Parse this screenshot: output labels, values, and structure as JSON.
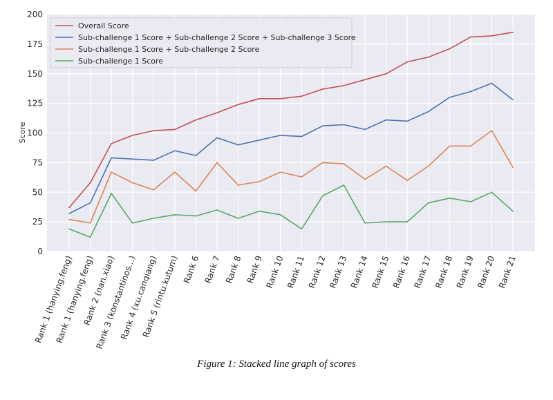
{
  "chart_data": {
    "type": "line",
    "title": "",
    "xlabel": "",
    "ylabel": "Score",
    "ylim": [
      0,
      200
    ],
    "yticks": [
      0,
      25,
      50,
      75,
      100,
      125,
      150,
      175,
      200
    ],
    "grid": true,
    "legend_position": "top-left",
    "categories": [
      "Rank 1 (hanying.feng)",
      "Rank 1 (hanying.feng)",
      "Rank 2 (nan.xiao)",
      "Rank 3 (konstantinos...)",
      "Rank 4 (xu.canqiang)",
      "Rank 5 (rintu.kutum)",
      "Rank 6",
      "Rank 7",
      "Rank 8",
      "Rank 9",
      "Rank 10",
      "Rank 11",
      "Rank 12",
      "Rank 13",
      "Rank 14",
      "Rank 15",
      "Rank 16",
      "Rank 17",
      "Rank 18",
      "Rank 19",
      "Rank 20",
      "Rank 21"
    ],
    "series": [
      {
        "name": "Overall Score",
        "color": "#c44e52",
        "values": [
          37,
          58,
          91,
          98,
          102,
          103,
          111,
          117,
          124,
          129,
          129,
          131,
          137,
          140,
          145,
          150,
          160,
          164,
          171,
          181,
          182,
          185
        ]
      },
      {
        "name": "Sub-challenge 1 Score + Sub-challenge 2 Score + Sub-challenge 3 Score",
        "color": "#4c72b0",
        "values": [
          32,
          41,
          79,
          78,
          77,
          85,
          81,
          96,
          90,
          94,
          98,
          97,
          106,
          107,
          103,
          111,
          110,
          118,
          130,
          135,
          142,
          128
        ]
      },
      {
        "name": "Sub-challenge 1 Score + Sub-challenge 2 Score",
        "color": "#dd8452",
        "values": [
          27,
          24,
          67,
          58,
          52,
          67,
          51,
          75,
          56,
          59,
          67,
          63,
          75,
          74,
          61,
          72,
          60,
          72,
          89,
          89,
          102,
          71
        ]
      },
      {
        "name": "Sub-challenge 1 Score",
        "color": "#55a868",
        "values": [
          19,
          12,
          49,
          24,
          28,
          31,
          30,
          35,
          28,
          34,
          31,
          19,
          47,
          56,
          24,
          25,
          25,
          41,
          45,
          42,
          50,
          34
        ]
      }
    ]
  },
  "caption": "Figure 1: Stacked line graph of scores"
}
